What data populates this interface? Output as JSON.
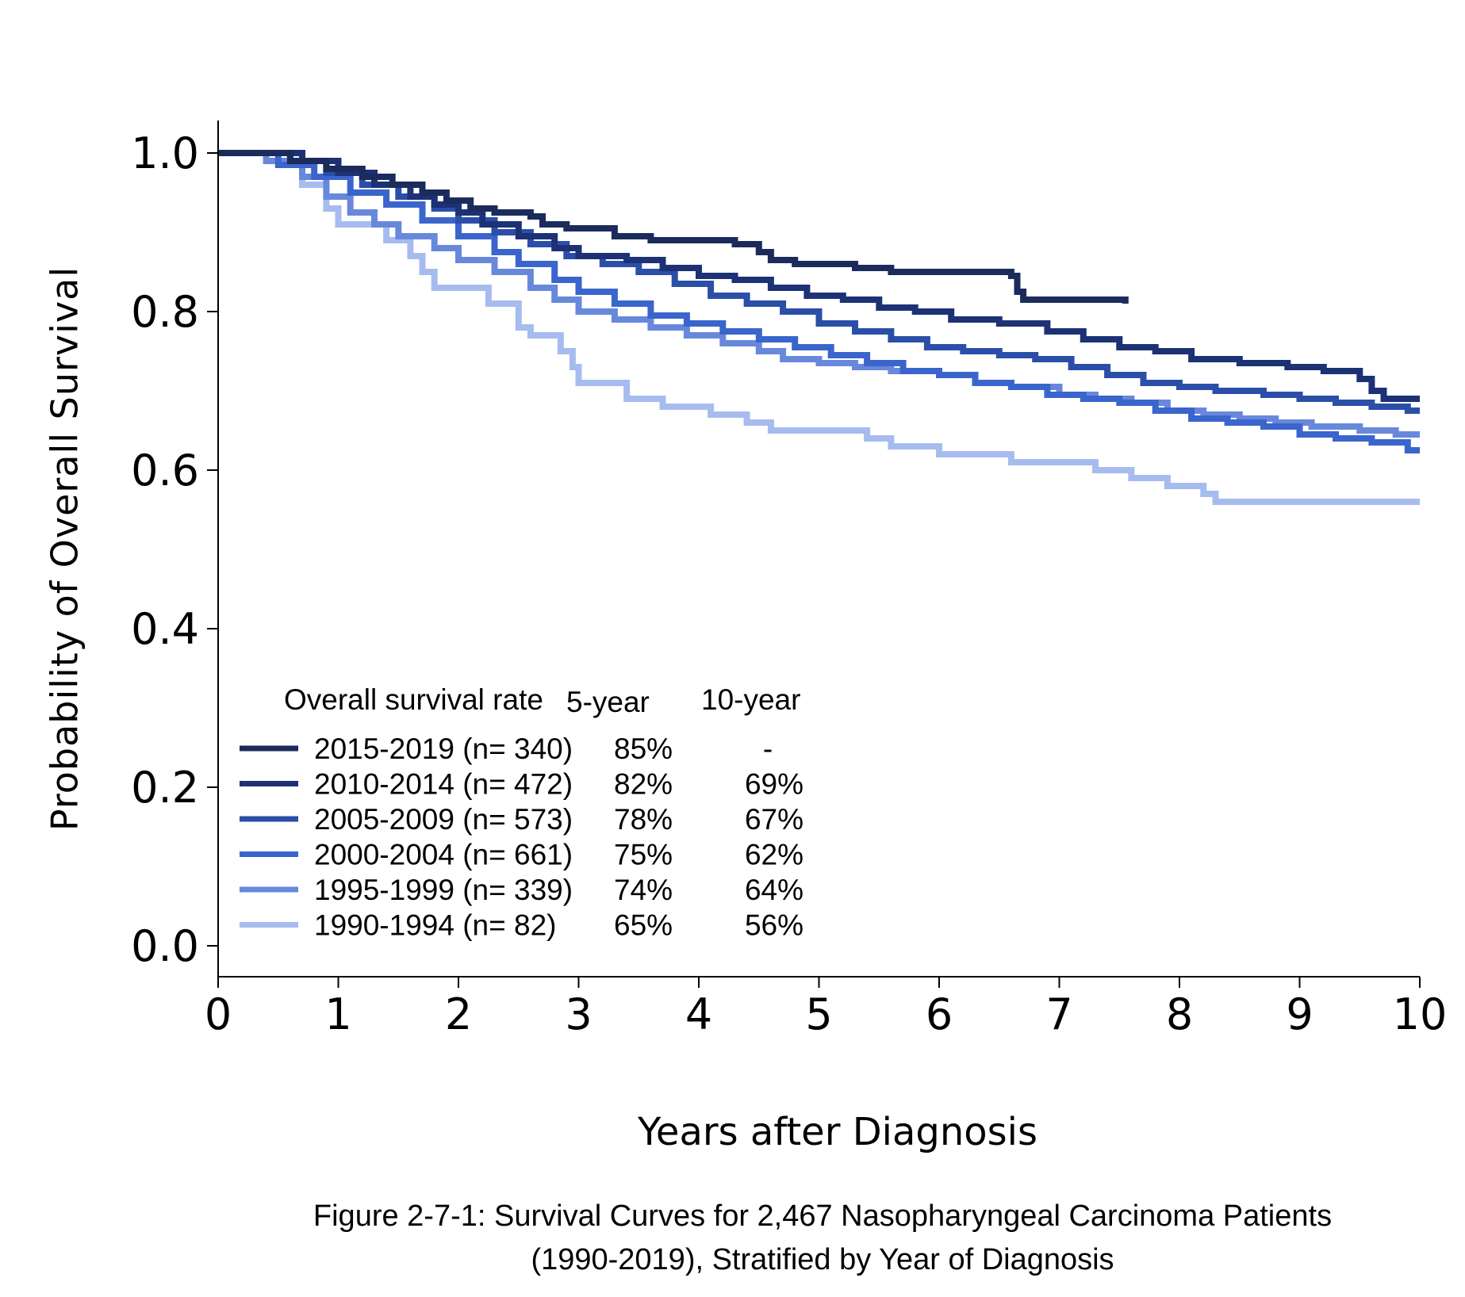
{
  "chart_data": {
    "type": "line",
    "step": true,
    "xlabel": "Years after Diagnosis",
    "ylabel": "Probability of Overall Survival",
    "xlim": [
      0,
      10
    ],
    "ylim": [
      0,
      1
    ],
    "xticks": [
      "0",
      "1",
      "2",
      "3",
      "4",
      "5",
      "6",
      "7",
      "8",
      "9",
      "10"
    ],
    "yticks": [
      "0.0",
      "0.2",
      "0.4",
      "0.6",
      "0.8",
      "1.0"
    ],
    "grid": false,
    "legend_position": "bottom-left",
    "legend": {
      "header": "Overall survival rate",
      "col5_header": "5-year",
      "col10_header": "10-year"
    },
    "caption": [
      "Figure 2-7-1: Survival Curves for 2,467 Nasopharyngeal Carcinoma Patients",
      "(1990-2019), Stratified by Year of Diagnosis"
    ],
    "series": [
      {
        "name": "2015-2019 (n= 340)",
        "five_year": "85%",
        "ten_year": "-",
        "color": "#1b2b5c",
        "points": [
          [
            0,
            1.0
          ],
          [
            0.6,
            0.99
          ],
          [
            0.9,
            0.98
          ],
          [
            1.2,
            0.97
          ],
          [
            1.45,
            0.96
          ],
          [
            1.7,
            0.95
          ],
          [
            1.9,
            0.94
          ],
          [
            2.1,
            0.93
          ],
          [
            2.3,
            0.925
          ],
          [
            2.6,
            0.92
          ],
          [
            2.7,
            0.91
          ],
          [
            2.9,
            0.905
          ],
          [
            3.3,
            0.895
          ],
          [
            3.6,
            0.89
          ],
          [
            4.3,
            0.885
          ],
          [
            4.5,
            0.875
          ],
          [
            4.6,
            0.865
          ],
          [
            4.8,
            0.86
          ],
          [
            5.3,
            0.855
          ],
          [
            5.6,
            0.85
          ],
          [
            6.6,
            0.845
          ],
          [
            6.65,
            0.825
          ],
          [
            6.7,
            0.815
          ],
          [
            7.3,
            0.815
          ],
          [
            7.55,
            0.81
          ]
        ]
      },
      {
        "name": "2010-2014 (n= 472)",
        "five_year": "82%",
        "ten_year": "69%",
        "color": "#1d3175",
        "points": [
          [
            0,
            1.0
          ],
          [
            0.7,
            0.99
          ],
          [
            1.0,
            0.975
          ],
          [
            1.3,
            0.96
          ],
          [
            1.6,
            0.945
          ],
          [
            1.8,
            0.935
          ],
          [
            2.0,
            0.925
          ],
          [
            2.2,
            0.91
          ],
          [
            2.5,
            0.895
          ],
          [
            2.8,
            0.88
          ],
          [
            3.0,
            0.87
          ],
          [
            3.4,
            0.865
          ],
          [
            3.7,
            0.855
          ],
          [
            4.0,
            0.845
          ],
          [
            4.3,
            0.84
          ],
          [
            4.6,
            0.83
          ],
          [
            4.9,
            0.82
          ],
          [
            5.2,
            0.815
          ],
          [
            5.5,
            0.805
          ],
          [
            5.8,
            0.8
          ],
          [
            6.1,
            0.79
          ],
          [
            6.5,
            0.785
          ],
          [
            6.9,
            0.775
          ],
          [
            7.2,
            0.765
          ],
          [
            7.5,
            0.755
          ],
          [
            7.8,
            0.75
          ],
          [
            8.1,
            0.74
          ],
          [
            8.5,
            0.735
          ],
          [
            8.9,
            0.73
          ],
          [
            9.2,
            0.725
          ],
          [
            9.5,
            0.715
          ],
          [
            9.6,
            0.7
          ],
          [
            9.7,
            0.69
          ],
          [
            10,
            0.69
          ]
        ]
      },
      {
        "name": "2005-2009 (n= 573)",
        "five_year": "78%",
        "ten_year": "67%",
        "color": "#2b4ea8",
        "points": [
          [
            0,
            1.0
          ],
          [
            0.6,
            0.99
          ],
          [
            0.9,
            0.975
          ],
          [
            1.2,
            0.96
          ],
          [
            1.5,
            0.945
          ],
          [
            1.8,
            0.93
          ],
          [
            2.0,
            0.915
          ],
          [
            2.3,
            0.9
          ],
          [
            2.6,
            0.885
          ],
          [
            2.9,
            0.87
          ],
          [
            3.2,
            0.86
          ],
          [
            3.5,
            0.85
          ],
          [
            3.8,
            0.835
          ],
          [
            4.1,
            0.82
          ],
          [
            4.4,
            0.81
          ],
          [
            4.7,
            0.8
          ],
          [
            5.0,
            0.785
          ],
          [
            5.3,
            0.775
          ],
          [
            5.6,
            0.765
          ],
          [
            5.9,
            0.755
          ],
          [
            6.2,
            0.75
          ],
          [
            6.5,
            0.745
          ],
          [
            6.8,
            0.74
          ],
          [
            7.1,
            0.73
          ],
          [
            7.4,
            0.72
          ],
          [
            7.7,
            0.71
          ],
          [
            8.0,
            0.705
          ],
          [
            8.3,
            0.7
          ],
          [
            8.7,
            0.695
          ],
          [
            9.0,
            0.69
          ],
          [
            9.3,
            0.685
          ],
          [
            9.6,
            0.68
          ],
          [
            9.9,
            0.675
          ],
          [
            10,
            0.675
          ]
        ]
      },
      {
        "name": "2000-2004 (n= 661)",
        "five_year": "75%",
        "ten_year": "62%",
        "color": "#3a65cc",
        "points": [
          [
            0,
            1.0
          ],
          [
            0.5,
            0.985
          ],
          [
            0.8,
            0.97
          ],
          [
            1.1,
            0.95
          ],
          [
            1.4,
            0.935
          ],
          [
            1.7,
            0.915
          ],
          [
            2.0,
            0.895
          ],
          [
            2.3,
            0.875
          ],
          [
            2.5,
            0.86
          ],
          [
            2.8,
            0.84
          ],
          [
            3.0,
            0.825
          ],
          [
            3.3,
            0.81
          ],
          [
            3.6,
            0.795
          ],
          [
            3.9,
            0.785
          ],
          [
            4.2,
            0.775
          ],
          [
            4.5,
            0.765
          ],
          [
            4.8,
            0.755
          ],
          [
            5.1,
            0.745
          ],
          [
            5.4,
            0.735
          ],
          [
            5.7,
            0.725
          ],
          [
            6.0,
            0.72
          ],
          [
            6.3,
            0.71
          ],
          [
            6.6,
            0.705
          ],
          [
            6.9,
            0.695
          ],
          [
            7.2,
            0.69
          ],
          [
            7.5,
            0.685
          ],
          [
            7.8,
            0.675
          ],
          [
            8.1,
            0.665
          ],
          [
            8.4,
            0.66
          ],
          [
            8.7,
            0.655
          ],
          [
            9.0,
            0.645
          ],
          [
            9.3,
            0.64
          ],
          [
            9.6,
            0.635
          ],
          [
            9.9,
            0.625
          ],
          [
            10,
            0.625
          ]
        ]
      },
      {
        "name": "1995-1999 (n= 339)",
        "five_year": "74%",
        "ten_year": "64%",
        "color": "#6888dc",
        "points": [
          [
            0,
            1.0
          ],
          [
            0.4,
            0.99
          ],
          [
            0.7,
            0.97
          ],
          [
            0.9,
            0.945
          ],
          [
            1.1,
            0.925
          ],
          [
            1.3,
            0.91
          ],
          [
            1.5,
            0.895
          ],
          [
            1.8,
            0.88
          ],
          [
            2.0,
            0.865
          ],
          [
            2.3,
            0.85
          ],
          [
            2.6,
            0.83
          ],
          [
            2.8,
            0.815
          ],
          [
            3.0,
            0.8
          ],
          [
            3.3,
            0.79
          ],
          [
            3.6,
            0.78
          ],
          [
            3.9,
            0.77
          ],
          [
            4.2,
            0.76
          ],
          [
            4.5,
            0.75
          ],
          [
            4.7,
            0.74
          ],
          [
            5.0,
            0.735
          ],
          [
            5.3,
            0.73
          ],
          [
            5.6,
            0.725
          ],
          [
            6.0,
            0.72
          ],
          [
            6.3,
            0.71
          ],
          [
            6.6,
            0.705
          ],
          [
            7.0,
            0.695
          ],
          [
            7.3,
            0.69
          ],
          [
            7.6,
            0.685
          ],
          [
            7.9,
            0.675
          ],
          [
            8.2,
            0.67
          ],
          [
            8.5,
            0.665
          ],
          [
            8.8,
            0.66
          ],
          [
            9.1,
            0.655
          ],
          [
            9.5,
            0.65
          ],
          [
            9.8,
            0.645
          ],
          [
            10,
            0.645
          ]
        ]
      },
      {
        "name": "1990-1994 (n= 82)",
        "five_year": "65%",
        "ten_year": "56%",
        "color": "#a7bcee",
        "points": [
          [
            0,
            1.0
          ],
          [
            0.4,
            0.99
          ],
          [
            0.7,
            0.96
          ],
          [
            0.9,
            0.93
          ],
          [
            1.0,
            0.91
          ],
          [
            1.4,
            0.89
          ],
          [
            1.6,
            0.87
          ],
          [
            1.7,
            0.85
          ],
          [
            1.8,
            0.83
          ],
          [
            2.2,
            0.83
          ],
          [
            2.25,
            0.81
          ],
          [
            2.5,
            0.78
          ],
          [
            2.6,
            0.77
          ],
          [
            2.85,
            0.75
          ],
          [
            2.95,
            0.73
          ],
          [
            3.0,
            0.71
          ],
          [
            3.4,
            0.69
          ],
          [
            3.7,
            0.68
          ],
          [
            4.1,
            0.67
          ],
          [
            4.4,
            0.66
          ],
          [
            4.6,
            0.65
          ],
          [
            5.2,
            0.65
          ],
          [
            5.4,
            0.64
          ],
          [
            5.6,
            0.63
          ],
          [
            6.0,
            0.62
          ],
          [
            6.6,
            0.61
          ],
          [
            7.3,
            0.6
          ],
          [
            7.6,
            0.59
          ],
          [
            7.9,
            0.58
          ],
          [
            8.2,
            0.57
          ],
          [
            8.3,
            0.56
          ],
          [
            10,
            0.56
          ]
        ]
      }
    ]
  }
}
